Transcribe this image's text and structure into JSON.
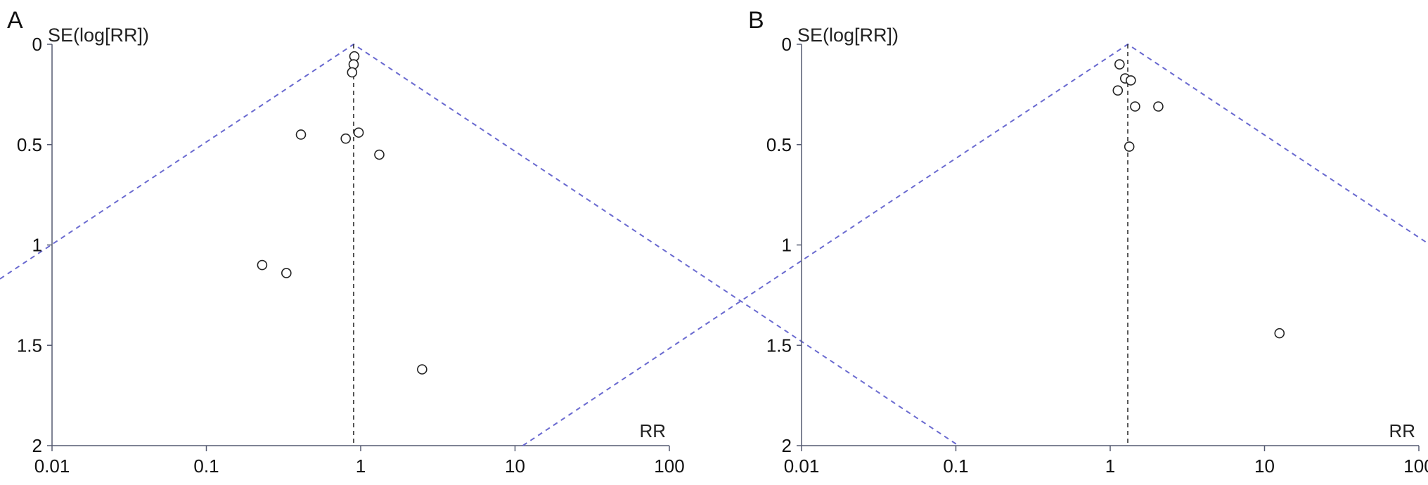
{
  "chart_data": [
    {
      "panel": "A",
      "type": "scatter",
      "ylabel": "SE(log[RR])",
      "xlabel": "RR",
      "x_scale": "log",
      "xlim": [
        0.01,
        100
      ],
      "ylim": [
        0,
        2
      ],
      "y_reversed": true,
      "x_ticks": [
        "0.01",
        "0.1",
        "1",
        "10",
        "100"
      ],
      "y_ticks": [
        "0",
        "0.5",
        "1",
        "1.5",
        "2"
      ],
      "pooled_rr": 0.9,
      "points": [
        {
          "x": 0.91,
          "y": 0.06
        },
        {
          "x": 0.9,
          "y": 0.1
        },
        {
          "x": 0.88,
          "y": 0.14
        },
        {
          "x": 0.41,
          "y": 0.45
        },
        {
          "x": 0.8,
          "y": 0.47
        },
        {
          "x": 0.97,
          "y": 0.44
        },
        {
          "x": 1.32,
          "y": 0.55
        },
        {
          "x": 0.23,
          "y": 1.1
        },
        {
          "x": 0.33,
          "y": 1.14
        },
        {
          "x": 2.5,
          "y": 1.62
        }
      ]
    },
    {
      "panel": "B",
      "type": "scatter",
      "ylabel": "SE(log[RR])",
      "xlabel": "RR",
      "x_scale": "log",
      "xlim": [
        0.01,
        100
      ],
      "ylim": [
        0,
        2
      ],
      "y_reversed": true,
      "x_ticks": [
        "0.01",
        "0.1",
        "1",
        "10",
        "100"
      ],
      "y_ticks": [
        "0",
        "0.5",
        "1",
        "1.5",
        "2"
      ],
      "pooled_rr": 1.3,
      "points": [
        {
          "x": 1.15,
          "y": 0.1
        },
        {
          "x": 1.25,
          "y": 0.17
        },
        {
          "x": 1.36,
          "y": 0.18
        },
        {
          "x": 1.12,
          "y": 0.23
        },
        {
          "x": 1.45,
          "y": 0.31
        },
        {
          "x": 2.05,
          "y": 0.31
        },
        {
          "x": 1.33,
          "y": 0.51
        },
        {
          "x": 12.5,
          "y": 1.44
        }
      ]
    }
  ]
}
